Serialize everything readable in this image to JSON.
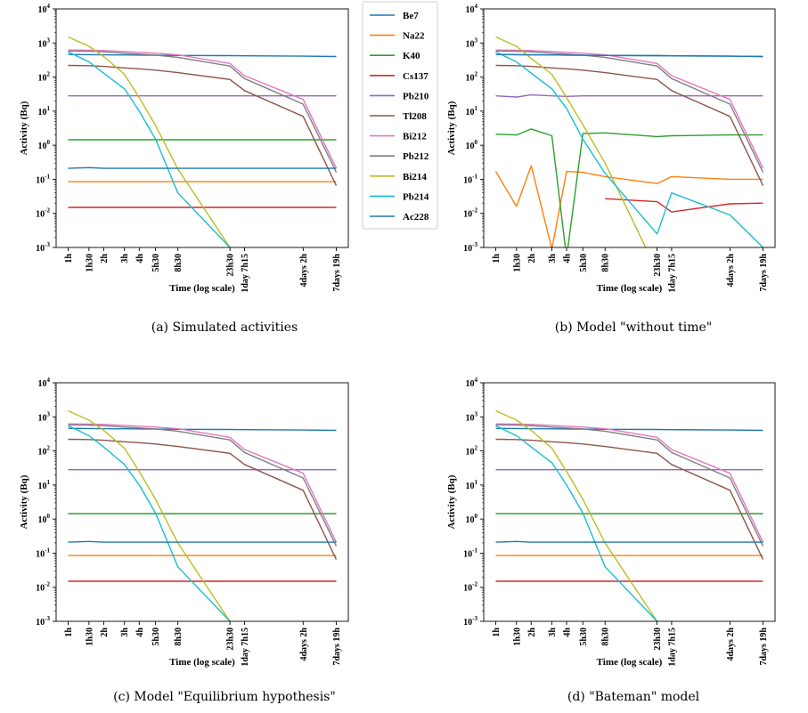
{
  "colors": {
    "Be7": "#1f77b4",
    "Na22": "#ff7f0e",
    "K40": "#2ca02c",
    "Cs137": "#d62728",
    "Pb210": "#9467bd",
    "Tl208": "#8c564b",
    "Bi212": "#e377c2",
    "Pb212": "#7f7f7f",
    "Bi214": "#bcbd22",
    "Pb214": "#17becf",
    "Ac228": "#1f77b4"
  },
  "legend": {
    "placement": "right-of-panel-a",
    "entries": [
      "Be7",
      "Na22",
      "K40",
      "Cs137",
      "Pb210",
      "Tl208",
      "Bi212",
      "Pb212",
      "Bi214",
      "Pb214",
      "Ac228"
    ]
  },
  "chart_data": [
    {
      "type": "line",
      "caption": "(a) Simulated activities",
      "xlabel": "Time (log scale)",
      "ylabel": "Activity (Bq)",
      "yscale": "log",
      "ylim": [
        0.001,
        10000
      ],
      "y_ticks": [
        "10^-3",
        "10^-2",
        "10^-1",
        "10^0",
        "10^1",
        "10^2",
        "10^3",
        "10^4"
      ],
      "x_ticks": [
        "1h",
        "1h30",
        "2h",
        "3h",
        "4h",
        "5h30",
        "8h30",
        "23h30",
        "1day 7h15",
        "4days 2h",
        "7days 19h"
      ],
      "x_hours": [
        1,
        1.5,
        2,
        3,
        4,
        5.5,
        8.5,
        23.5,
        31.25,
        98,
        187
      ],
      "grid": false,
      "series": [
        {
          "name": "Be7",
          "values": [
            460,
            455,
            450,
            445,
            440,
            435,
            430,
            425,
            420,
            410,
            400
          ]
        },
        {
          "name": "Na22",
          "values": [
            0.085,
            0.085,
            0.085,
            0.085,
            0.085,
            0.085,
            0.085,
            0.085,
            0.085,
            0.085,
            0.085
          ]
        },
        {
          "name": "K40",
          "values": [
            1.45,
            1.45,
            1.45,
            1.45,
            1.45,
            1.45,
            1.45,
            1.45,
            1.45,
            1.45,
            1.45
          ]
        },
        {
          "name": "Cs137",
          "values": [
            0.015,
            0.015,
            0.015,
            0.015,
            0.015,
            0.015,
            0.015,
            0.015,
            0.015,
            0.015,
            0.015
          ]
        },
        {
          "name": "Pb210",
          "values": [
            28,
            28,
            28,
            28,
            28,
            28,
            28,
            28,
            28,
            28,
            28
          ]
        },
        {
          "name": "Tl208",
          "values": [
            220,
            215,
            205,
            185,
            175,
            160,
            135,
            85,
            40,
            7,
            0.065
          ]
        },
        {
          "name": "Bi212",
          "values": [
            620,
            615,
            600,
            560,
            530,
            500,
            450,
            250,
            110,
            22,
            0.21
          ]
        },
        {
          "name": "Pb212",
          "values": [
            580,
            570,
            550,
            500,
            470,
            440,
            380,
            210,
            90,
            16,
            0.16
          ]
        },
        {
          "name": "Bi214",
          "values": [
            1500,
            800,
            400,
            120,
            25,
            3.8,
            0.2,
            0.001,
            null,
            null,
            null
          ]
        },
        {
          "name": "Pb214",
          "values": [
            550,
            280,
            130,
            45,
            10,
            1.5,
            0.04,
            0.001,
            null,
            null,
            null
          ]
        },
        {
          "name": "Ac228",
          "values": [
            0.21,
            0.22,
            0.21,
            0.21,
            0.21,
            0.21,
            0.21,
            0.21,
            0.21,
            0.21,
            0.21
          ]
        }
      ]
    },
    {
      "type": "line",
      "caption": "(b) Model \"without time\"",
      "xlabel": "Time (log scale)",
      "ylabel": "Activity (Bq)",
      "yscale": "log",
      "ylim": [
        0.001,
        10000
      ],
      "y_ticks": [
        "10^-3",
        "10^-2",
        "10^-1",
        "10^0",
        "10^1",
        "10^2",
        "10^3",
        "10^4"
      ],
      "x_ticks": [
        "1h",
        "1h30",
        "2h",
        "3h",
        "4h",
        "5h30",
        "8h30",
        "23h30",
        "1day 7h15",
        "4days 2h",
        "7days 19h"
      ],
      "x_hours": [
        1,
        1.5,
        2,
        3,
        4,
        5.5,
        8.5,
        23.5,
        31.25,
        98,
        187
      ],
      "grid": false,
      "series": [
        {
          "name": "Be7",
          "values": [
            460,
            455,
            450,
            445,
            440,
            435,
            430,
            425,
            420,
            410,
            400
          ]
        },
        {
          "name": "Na22",
          "values": [
            0.17,
            0.016,
            0.25,
            0.0009,
            0.17,
            0.16,
            0.12,
            0.075,
            0.12,
            0.1,
            0.1
          ]
        },
        {
          "name": "K40",
          "values": [
            2.1,
            2.0,
            3.0,
            1.9,
            0.0005,
            2.2,
            2.3,
            1.8,
            1.9,
            2.0,
            2.0
          ]
        },
        {
          "name": "Cs137",
          "values": [
            null,
            null,
            null,
            null,
            null,
            null,
            0.027,
            0.022,
            0.011,
            0.019,
            0.02
          ]
        },
        {
          "name": "Pb210",
          "values": [
            28,
            26,
            30,
            28,
            27,
            28,
            28,
            28,
            28,
            28,
            28
          ]
        },
        {
          "name": "Tl208",
          "values": [
            220,
            215,
            205,
            185,
            175,
            160,
            135,
            85,
            40,
            7,
            0.065
          ]
        },
        {
          "name": "Bi212",
          "values": [
            620,
            615,
            600,
            560,
            530,
            500,
            450,
            250,
            110,
            22,
            0.21
          ]
        },
        {
          "name": "Pb212",
          "values": [
            580,
            570,
            550,
            500,
            470,
            440,
            380,
            210,
            90,
            16,
            0.16
          ]
        },
        {
          "name": "Bi214",
          "values": [
            1500,
            800,
            350,
            120,
            25,
            4,
            0.3,
            0.0002,
            null,
            null,
            null
          ]
        },
        {
          "name": "Pb214",
          "values": [
            550,
            280,
            130,
            45,
            12,
            1.5,
            0.15,
            0.0025,
            0.04,
            0.009,
            0.001
          ]
        },
        {
          "name": "Ac228",
          "values": [
            460,
            455,
            450,
            445,
            440,
            435,
            430,
            425,
            420,
            410,
            400
          ]
        }
      ]
    },
    {
      "type": "line",
      "caption": "(c) Model \"Equilibrium hypothesis\"",
      "xlabel": "Time (log scale)",
      "ylabel": "Activity (Bq)",
      "yscale": "log",
      "ylim": [
        0.001,
        10000
      ],
      "y_ticks": [
        "10^-3",
        "10^-2",
        "10^-1",
        "10^0",
        "10^1",
        "10^2",
        "10^3",
        "10^4"
      ],
      "x_ticks": [
        "1h",
        "1h30",
        "2h",
        "3h",
        "4h",
        "5h30",
        "8h30",
        "23h30",
        "1day 7h15",
        "4days 2h",
        "7days 19h"
      ],
      "x_hours": [
        1,
        1.5,
        2,
        3,
        4,
        5.5,
        8.5,
        23.5,
        31.25,
        98,
        187
      ],
      "grid": false,
      "series": [
        {
          "name": "Be7",
          "values": [
            460,
            455,
            450,
            445,
            440,
            435,
            430,
            425,
            420,
            410,
            400
          ]
        },
        {
          "name": "Na22",
          "values": [
            0.085,
            0.085,
            0.085,
            0.085,
            0.085,
            0.085,
            0.085,
            0.085,
            0.085,
            0.085,
            0.085
          ]
        },
        {
          "name": "K40",
          "values": [
            1.45,
            1.45,
            1.45,
            1.45,
            1.45,
            1.45,
            1.45,
            1.45,
            1.45,
            1.45,
            1.45
          ]
        },
        {
          "name": "Cs137",
          "values": [
            0.015,
            0.015,
            0.015,
            0.015,
            0.015,
            0.015,
            0.015,
            0.015,
            0.015,
            0.015,
            0.015
          ]
        },
        {
          "name": "Pb210",
          "values": [
            28,
            28,
            28,
            28,
            28,
            28,
            28,
            28,
            28,
            28,
            28
          ]
        },
        {
          "name": "Tl208",
          "values": [
            220,
            215,
            205,
            185,
            175,
            160,
            135,
            85,
            40,
            7,
            0.065
          ]
        },
        {
          "name": "Bi212",
          "values": [
            620,
            615,
            600,
            560,
            530,
            500,
            450,
            250,
            110,
            22,
            0.21
          ]
        },
        {
          "name": "Pb212",
          "values": [
            580,
            570,
            550,
            500,
            470,
            440,
            380,
            210,
            90,
            16,
            0.16
          ]
        },
        {
          "name": "Bi214",
          "values": [
            1500,
            800,
            400,
            120,
            25,
            3.8,
            0.2,
            0.001,
            null,
            null,
            null
          ]
        },
        {
          "name": "Pb214",
          "values": [
            550,
            280,
            130,
            40,
            10,
            1.5,
            0.04,
            0.001,
            null,
            null,
            null
          ]
        },
        {
          "name": "Ac228",
          "values": [
            0.21,
            0.22,
            0.21,
            0.21,
            0.21,
            0.21,
            0.21,
            0.21,
            0.21,
            0.21,
            0.21
          ]
        }
      ]
    },
    {
      "type": "line",
      "caption": "(d) \"Bateman\" model",
      "xlabel": "Time (log scale)",
      "ylabel": "Activity (Bq)",
      "yscale": "log",
      "ylim": [
        0.001,
        10000
      ],
      "y_ticks": [
        "10^-3",
        "10^-2",
        "10^-1",
        "10^0",
        "10^1",
        "10^2",
        "10^3",
        "10^4"
      ],
      "x_ticks": [
        "1h",
        "1h30",
        "2h",
        "3h",
        "4h",
        "5h30",
        "8h30",
        "23h30",
        "1day 7h15",
        "4days 2h",
        "7days 19h"
      ],
      "x_hours": [
        1,
        1.5,
        2,
        3,
        4,
        5.5,
        8.5,
        23.5,
        31.25,
        98,
        187
      ],
      "grid": false,
      "series": [
        {
          "name": "Be7",
          "values": [
            460,
            455,
            450,
            445,
            440,
            435,
            430,
            425,
            420,
            410,
            400
          ]
        },
        {
          "name": "Na22",
          "values": [
            0.085,
            0.085,
            0.085,
            0.085,
            0.085,
            0.085,
            0.085,
            0.085,
            0.085,
            0.085,
            0.085
          ]
        },
        {
          "name": "K40",
          "values": [
            1.45,
            1.45,
            1.45,
            1.45,
            1.45,
            1.45,
            1.45,
            1.45,
            1.45,
            1.45,
            1.45
          ]
        },
        {
          "name": "Cs137",
          "values": [
            0.015,
            0.015,
            0.015,
            0.015,
            0.015,
            0.015,
            0.015,
            0.015,
            0.015,
            0.015,
            0.015
          ]
        },
        {
          "name": "Pb210",
          "values": [
            28,
            28,
            28,
            28,
            28,
            28,
            28,
            28,
            28,
            28,
            28
          ]
        },
        {
          "name": "Tl208",
          "values": [
            220,
            215,
            205,
            185,
            175,
            160,
            135,
            85,
            40,
            7,
            0.065
          ]
        },
        {
          "name": "Bi212",
          "values": [
            620,
            615,
            600,
            560,
            530,
            500,
            450,
            250,
            110,
            22,
            0.21
          ]
        },
        {
          "name": "Pb212",
          "values": [
            580,
            570,
            550,
            500,
            470,
            440,
            380,
            210,
            90,
            16,
            0.16
          ]
        },
        {
          "name": "Bi214",
          "values": [
            1500,
            800,
            400,
            120,
            25,
            3.8,
            0.2,
            0.001,
            null,
            null,
            null
          ]
        },
        {
          "name": "Pb214",
          "values": [
            550,
            280,
            130,
            45,
            10,
            1.5,
            0.04,
            0.001,
            null,
            null,
            null
          ]
        },
        {
          "name": "Ac228",
          "values": [
            0.21,
            0.22,
            0.21,
            0.21,
            0.21,
            0.21,
            0.21,
            0.21,
            0.21,
            0.21,
            0.21
          ]
        }
      ]
    }
  ]
}
